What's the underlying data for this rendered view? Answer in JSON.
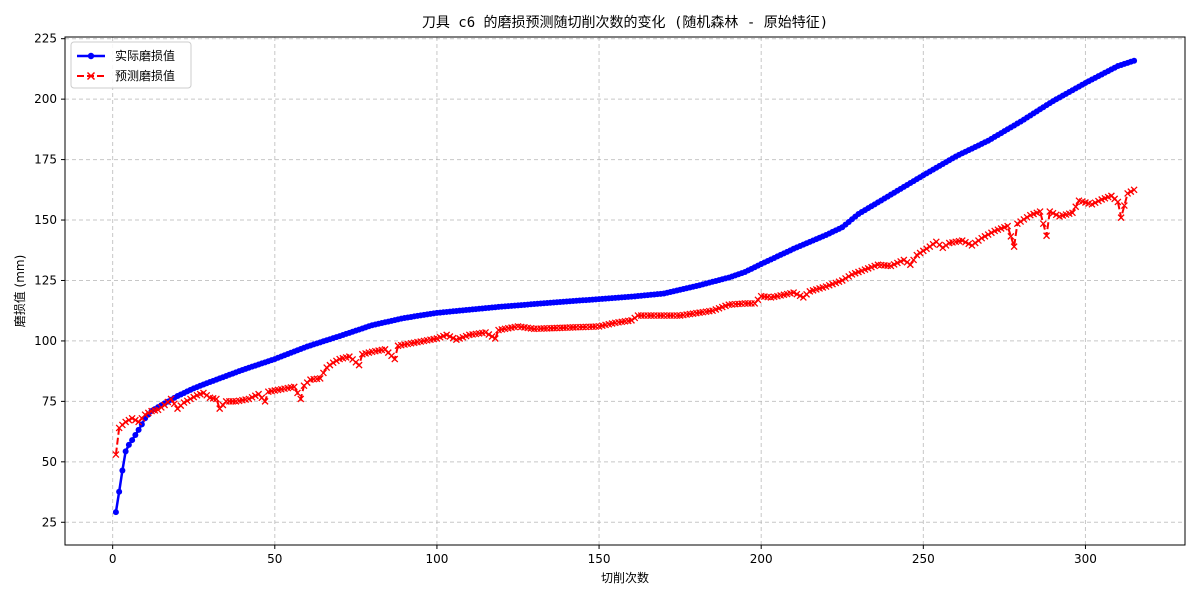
{
  "chart_data": {
    "type": "line",
    "title": "刀具 c6 的磨损预测随切削次数的变化 (随机森林 - 原始特征)",
    "xlabel": "切削次数",
    "ylabel": "磨损值 (mm)",
    "xlim": [
      -14.7,
      330.7
    ],
    "ylim": [
      15.6,
      225.7
    ],
    "xticks": [
      0,
      50,
      100,
      150,
      200,
      250,
      300
    ],
    "yticks": [
      25,
      50,
      75,
      100,
      125,
      150,
      175,
      200,
      225
    ],
    "grid": true,
    "legend_position": "upper-left",
    "series": [
      {
        "name": "实际磨损值",
        "color": "#0000ff",
        "marker": "circle",
        "points": [
          [
            1,
            29.2
          ],
          [
            2,
            37.6
          ],
          [
            3,
            46.4
          ],
          [
            4,
            54.3
          ],
          [
            5,
            57.0
          ],
          [
            6,
            59.0
          ],
          [
            7,
            61.1
          ],
          [
            8,
            63.2
          ],
          [
            9,
            65.5
          ],
          [
            10,
            68.0
          ],
          [
            12,
            71.0
          ],
          [
            15,
            73.4
          ],
          [
            20,
            77.2
          ],
          [
            25,
            80.4
          ],
          [
            30,
            83.0
          ],
          [
            40,
            88.0
          ],
          [
            50,
            92.5
          ],
          [
            60,
            97.7
          ],
          [
            70,
            102.0
          ],
          [
            80,
            106.5
          ],
          [
            90,
            109.5
          ],
          [
            100,
            111.6
          ],
          [
            120,
            114.2
          ],
          [
            140,
            116.3
          ],
          [
            160,
            118.3
          ],
          [
            170,
            119.6
          ],
          [
            180,
            122.7
          ],
          [
            190,
            126.2
          ],
          [
            195,
            128.5
          ],
          [
            200,
            131.8
          ],
          [
            210,
            138.1
          ],
          [
            220,
            143.8
          ],
          [
            225,
            147.0
          ],
          [
            230,
            152.5
          ],
          [
            240,
            160.5
          ],
          [
            250,
            168.5
          ],
          [
            260,
            176.3
          ],
          [
            270,
            182.8
          ],
          [
            280,
            190.7
          ],
          [
            290,
            199.2
          ],
          [
            300,
            206.7
          ],
          [
            310,
            213.7
          ],
          [
            315,
            215.9
          ]
        ]
      },
      {
        "name": "预测磨损值",
        "color": "#ff0000",
        "marker": "x",
        "points": [
          [
            1,
            53.0
          ],
          [
            2,
            64.0
          ],
          [
            4,
            66.5
          ],
          [
            6,
            68.0
          ],
          [
            8,
            66.5
          ],
          [
            10,
            69.5
          ],
          [
            12,
            71.0
          ],
          [
            14,
            71.5
          ],
          [
            16,
            73.5
          ],
          [
            18,
            76.0
          ],
          [
            20,
            72.0
          ],
          [
            22,
            74.5
          ],
          [
            24,
            76.0
          ],
          [
            26,
            77.5
          ],
          [
            28,
            78.5
          ],
          [
            30,
            76.5
          ],
          [
            32,
            76.0
          ],
          [
            33,
            72.0
          ],
          [
            35,
            75.0
          ],
          [
            38,
            75.0
          ],
          [
            42,
            76.0
          ],
          [
            45,
            78.0
          ],
          [
            47,
            75.0
          ],
          [
            48,
            79.0
          ],
          [
            52,
            80.0
          ],
          [
            56,
            81.0
          ],
          [
            58,
            76.0
          ],
          [
            59,
            81.5
          ],
          [
            61,
            84.0
          ],
          [
            64,
            84.5
          ],
          [
            66,
            89.0
          ],
          [
            68,
            91.0
          ],
          [
            70,
            92.5
          ],
          [
            73,
            93.5
          ],
          [
            76,
            90.0
          ],
          [
            77,
            94.5
          ],
          [
            80,
            95.5
          ],
          [
            84,
            96.5
          ],
          [
            87,
            92.5
          ],
          [
            88,
            98.0
          ],
          [
            92,
            99.0
          ],
          [
            96,
            100.0
          ],
          [
            100,
            101.0
          ],
          [
            103,
            102.5
          ],
          [
            106,
            100.5
          ],
          [
            110,
            102.5
          ],
          [
            115,
            103.5
          ],
          [
            118,
            101.0
          ],
          [
            119,
            104.5
          ],
          [
            125,
            106.0
          ],
          [
            130,
            105.0
          ],
          [
            140,
            105.5
          ],
          [
            150,
            106.0
          ],
          [
            155,
            107.5
          ],
          [
            160,
            108.5
          ],
          [
            162,
            110.5
          ],
          [
            170,
            110.5
          ],
          [
            175,
            110.5
          ],
          [
            180,
            111.5
          ],
          [
            185,
            112.5
          ],
          [
            190,
            115.0
          ],
          [
            195,
            115.5
          ],
          [
            198,
            115.5
          ],
          [
            200,
            118.5
          ],
          [
            203,
            118.0
          ],
          [
            205,
            118.5
          ],
          [
            210,
            120.0
          ],
          [
            213,
            118.0
          ],
          [
            215,
            120.5
          ],
          [
            220,
            122.5
          ],
          [
            225,
            125.0
          ],
          [
            228,
            127.5
          ],
          [
            232,
            129.5
          ],
          [
            236,
            131.5
          ],
          [
            240,
            131.0
          ],
          [
            244,
            133.5
          ],
          [
            246,
            131.5
          ],
          [
            248,
            135.5
          ],
          [
            252,
            139.0
          ],
          [
            254,
            141.0
          ],
          [
            256,
            138.5
          ],
          [
            258,
            140.5
          ],
          [
            262,
            141.5
          ],
          [
            265,
            139.5
          ],
          [
            268,
            142.5
          ],
          [
            272,
            145.5
          ],
          [
            276,
            147.5
          ],
          [
            278,
            139.0
          ],
          [
            279,
            148.5
          ],
          [
            283,
            152.0
          ],
          [
            286,
            153.5
          ],
          [
            288,
            143.5
          ],
          [
            289,
            153.5
          ],
          [
            292,
            151.5
          ],
          [
            296,
            153.0
          ],
          [
            298,
            158.0
          ],
          [
            302,
            156.5
          ],
          [
            305,
            158.5
          ],
          [
            308,
            160.0
          ],
          [
            310,
            157.5
          ],
          [
            311,
            151.0
          ],
          [
            313,
            161.0
          ],
          [
            315,
            162.5
          ]
        ]
      }
    ]
  }
}
